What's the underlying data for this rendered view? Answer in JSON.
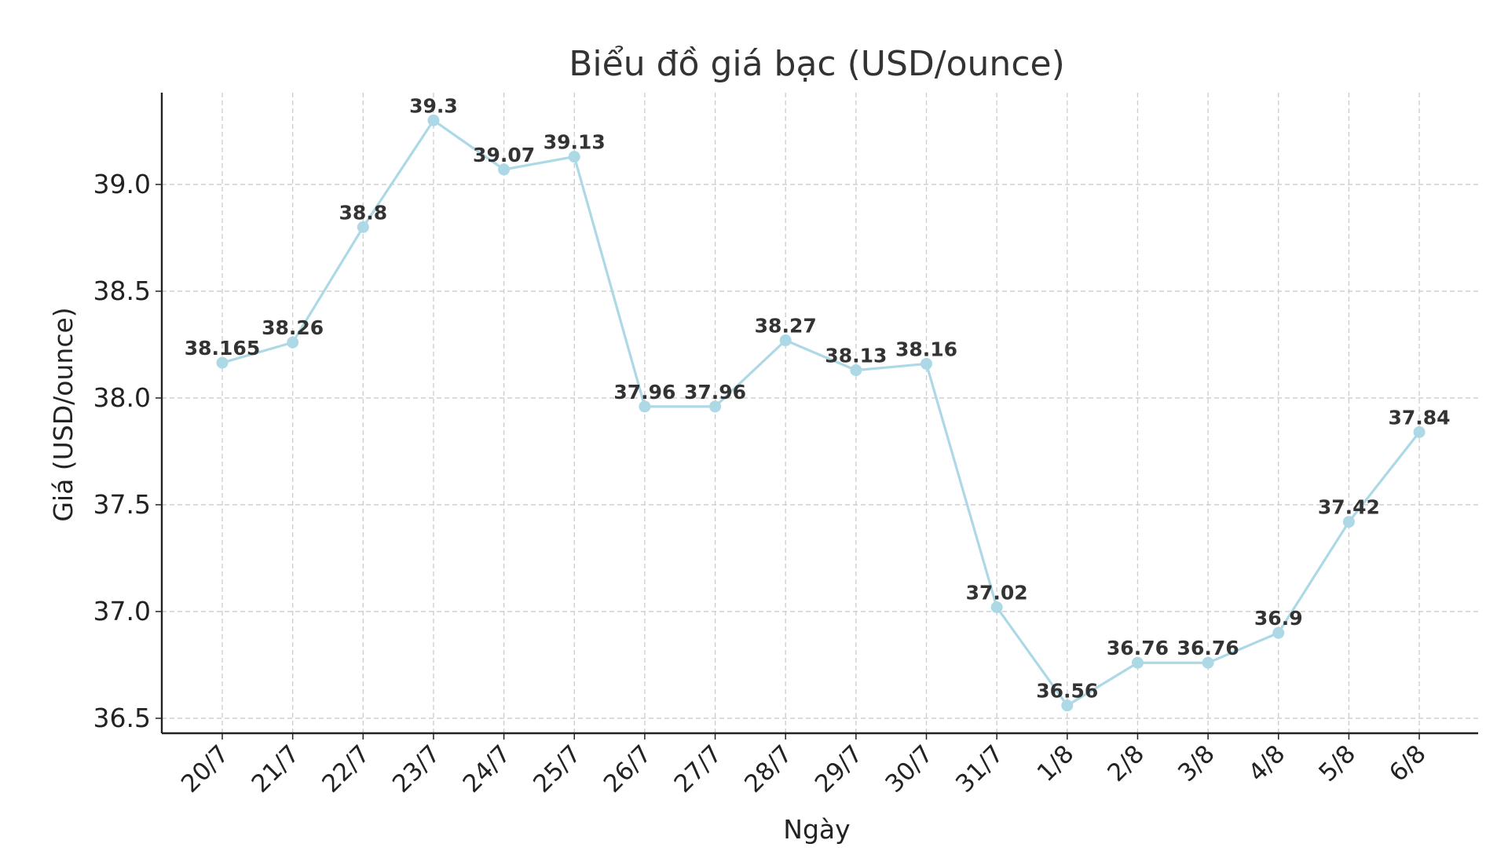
{
  "chart_data": {
    "type": "line",
    "title": "Biểu đồ giá bạc (USD/ounce)",
    "xlabel": "Ngày",
    "ylabel": "Giá (USD/ounce)",
    "categories": [
      "20/7",
      "21/7",
      "22/7",
      "23/7",
      "24/7",
      "25/7",
      "26/7",
      "27/7",
      "28/7",
      "29/7",
      "30/7",
      "31/7",
      "1/8",
      "2/8",
      "3/8",
      "4/8",
      "5/8",
      "6/8"
    ],
    "series": [
      {
        "values": [
          38.165,
          38.26,
          38.8,
          39.3,
          39.07,
          39.13,
          37.96,
          37.96,
          38.27,
          38.13,
          38.16,
          37.02,
          36.56,
          36.76,
          36.76,
          36.9,
          37.42,
          37.84
        ],
        "labels": [
          "38.165",
          "38.26",
          "38.8",
          "39.3",
          "39.07",
          "39.13",
          "37.96",
          "37.96",
          "38.27",
          "38.13",
          "38.16",
          "37.02",
          "36.56",
          "36.76",
          "36.76",
          "36.9",
          "37.42",
          "37.84"
        ],
        "color": "#add8e6"
      }
    ],
    "yticks": [
      "36.5",
      "37.0",
      "37.5",
      "38.0",
      "38.5",
      "39.0"
    ],
    "ylim": [
      36.43,
      39.43
    ],
    "grid": true,
    "legend": "none"
  }
}
